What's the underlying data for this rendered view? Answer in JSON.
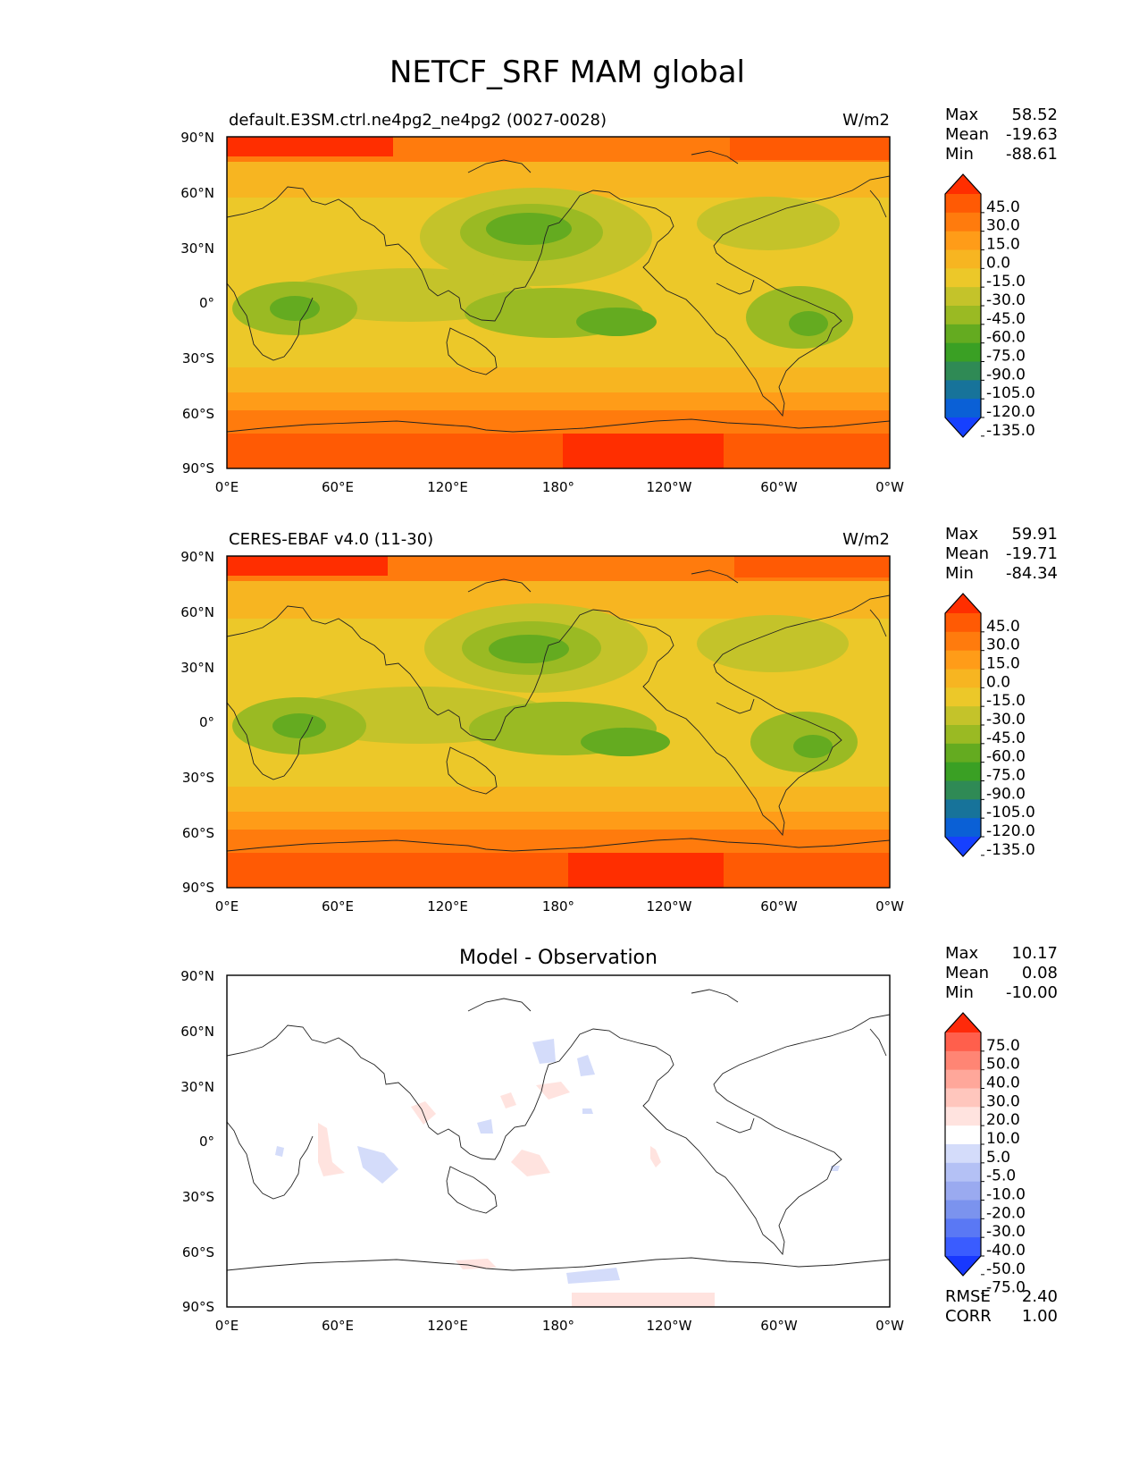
{
  "title": "NETCF_SRF MAM global",
  "axes": {
    "lat_ticks": [
      "90°N",
      "60°N",
      "30°N",
      "0°",
      "30°S",
      "60°S",
      "90°S"
    ],
    "lon_ticks": [
      "0°E",
      "60°E",
      "120°E",
      "180°",
      "120°W",
      "60°W",
      "0°W"
    ]
  },
  "colors": {
    "field_levels": [
      "#1640ff",
      "#0a60d6",
      "#17739a",
      "#2f8a55",
      "#3aa024",
      "#64ab20",
      "#9aba23",
      "#c4c32a",
      "#ecc829",
      "#f7b521",
      "#ff9c18",
      "#ff7b0d",
      "#ff5a04",
      "#ff2e00"
    ],
    "diff_levels": [
      "#1838ff",
      "#3a5cff",
      "#5a78f4",
      "#7b93ee",
      "#9aaaf0",
      "#b4c1f5",
      "#d4dcfa",
      "#ffffff",
      "#ffe3df",
      "#ffc6bd",
      "#ffa79a",
      "#ff8574",
      "#ff5f4c",
      "#ff2a0a"
    ]
  },
  "chart_data": [
    {
      "type": "heatmap",
      "panel": "test",
      "title": "default.E3SM.ctrl.ne4pg2_ne4pg2 (0027-0028)",
      "units": "W/m2",
      "stats": {
        "max_label": "Max",
        "max": "58.52",
        "mean_label": "Mean",
        "mean": "-19.63",
        "min_label": "Min",
        "min": "-88.61"
      },
      "colorbar_ticks": [
        "45.0",
        "30.0",
        "15.0",
        "0.0",
        "-15.0",
        "-30.0",
        "-45.0",
        "-60.0",
        "-75.0",
        "-90.0",
        "-105.0",
        "-120.0",
        "-135.0"
      ],
      "xlim": [
        0,
        360
      ],
      "ylim": [
        -90,
        90
      ]
    },
    {
      "type": "heatmap",
      "panel": "reference",
      "title": "CERES-EBAF v4.0 (11-30)",
      "units": "W/m2",
      "stats": {
        "max_label": "Max",
        "max": "59.91",
        "mean_label": "Mean",
        "mean": "-19.71",
        "min_label": "Min",
        "min": "-84.34"
      },
      "colorbar_ticks": [
        "45.0",
        "30.0",
        "15.0",
        "0.0",
        "-15.0",
        "-30.0",
        "-45.0",
        "-60.0",
        "-75.0",
        "-90.0",
        "-105.0",
        "-120.0",
        "-135.0"
      ],
      "xlim": [
        0,
        360
      ],
      "ylim": [
        -90,
        90
      ]
    },
    {
      "type": "heatmap",
      "panel": "difference",
      "title": "Model - Observation",
      "stats": {
        "max_label": "Max",
        "max": "10.17",
        "mean_label": "Mean",
        "mean": "0.08",
        "min_label": "Min",
        "min": "-10.00"
      },
      "colorbar_ticks": [
        "75.0",
        "50.0",
        "40.0",
        "30.0",
        "20.0",
        "10.0",
        "5.0",
        "-5.0",
        "-10.0",
        "-20.0",
        "-30.0",
        "-40.0",
        "-50.0",
        "-75.0"
      ],
      "metrics": {
        "rmse_label": "RMSE",
        "rmse": "2.40",
        "corr_label": "CORR",
        "corr": "1.00"
      },
      "xlim": [
        0,
        360
      ],
      "ylim": [
        -90,
        90
      ]
    }
  ]
}
